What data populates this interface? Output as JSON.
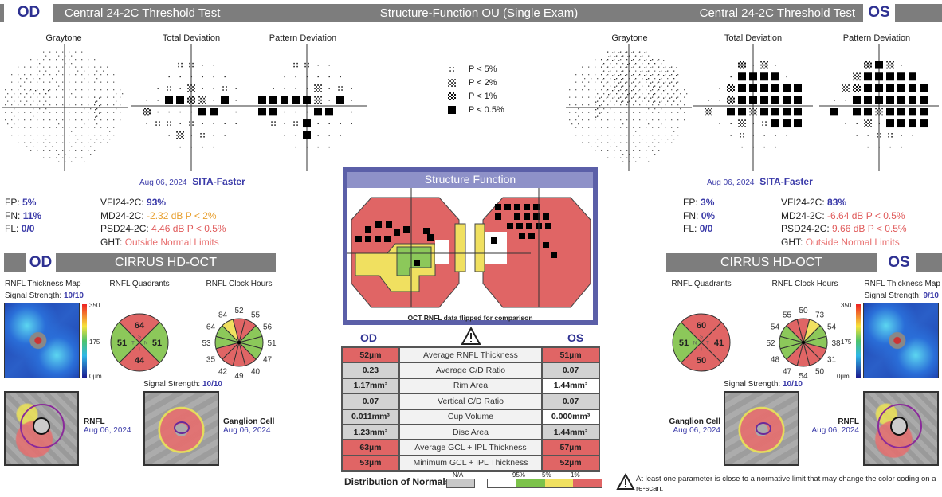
{
  "header": {
    "od": "OD",
    "os": "OS",
    "test_left": "Central 24-2C Threshold Test",
    "title": "Structure-Function OU (Single Exam)",
    "test_right": "Central 24-2C Threshold Test"
  },
  "vf_titles": {
    "graytone": "Graytone",
    "total": "Total Deviation",
    "pattern": "Pattern Deviation"
  },
  "legend": [
    {
      "sym": ":",
      "label": "P < 5%"
    },
    {
      "sym": "x",
      "label": "P < 2%"
    },
    {
      "sym": "#",
      "label": "P < 1%"
    },
    {
      "sym": "B",
      "label": "P < 0.5%"
    }
  ],
  "od_vf": {
    "date": "Aug 06, 2024",
    "strategy": "SITA-Faster",
    "fp_l": "FP:",
    "fp": "5%",
    "fn_l": "FN:",
    "fn": "11%",
    "fl_l": "FL:",
    "fl": "0/0",
    "vfi_l": "VFI24-2C:",
    "vfi": "93%",
    "md_l": "MD24-2C:",
    "md": "-2.32 dB P < 2%",
    "psd_l": "PSD24-2C:",
    "psd": "4.46 dB P < 0.5%",
    "ght_l": "GHT:",
    "ght": "Outside Normal Limits",
    "md_color": "#e8a030",
    "psd_color": "#e05a5a",
    "total_grid": [
      "   ::..  ",
      "  ...... ",
      " .:.x..:.",
      "..BB#x.B.",
      "#....BB .",
      ".::.:....",
      "  .x.:.. ",
      "   ....  "
    ],
    "pattern_grid": [
      "   ::..  ",
      "  ...... ",
      " ....x.:.",
      "BBBBBx.B.",
      "BB...BB .",
      " :.:B....",
      "  ..B... ",
      "   ....  "
    ]
  },
  "os_vf": {
    "date": "Aug 06, 2024",
    "strategy": "SITA-Faster",
    "fp_l": "FP:",
    "fp": "3%",
    "fn_l": "FN:",
    "fn": "0%",
    "fl_l": "FL:",
    "fl": "0/0",
    "vfi_l": "VFI24-2C:",
    "vfi": "83%",
    "md_l": "MD24-2C:",
    "md": "-6.64 dB P < 0.5%",
    "psd_l": "PSD24-2C:",
    "psd": "9.66 dB P < 0.5%",
    "ght_l": "GHT:",
    "ght": "Outside Normal Limits",
    "md_color": "#e05a5a",
    "psd_color": "#e05a5a",
    "total_grid": [
      "   #.x.  ",
      "  .BBBB. ",
      " .#BBBBBB",
      "..#BBBBBB",
      "x BBxBBBB",
      " ..x.:BBB",
      "  .:.... ",
      "   ....  "
    ],
    "pattern_grid": [
      "   #Bx.  ",
      "  xBBBBB ",
      " x#BBBBBB",
      "..BBBBBBB",
      "B BBxBBBB",
      " ..x.BBBB",
      "  ..::.. ",
      "   ....  "
    ]
  },
  "od_oct": {
    "eye": "OD",
    "banner": "CIRRUS HD-OCT",
    "map_label": "RNFL Thickness Map",
    "signal_label": "Signal Strength:",
    "signal": "10/10",
    "quad_label": "RNFL Quadrants",
    "clock_label": "RNFL Clock Hours",
    "scale": {
      "top": "350",
      "mid": "175",
      "bottom": "0µm"
    },
    "quadrants": {
      "S": {
        "v": "64",
        "c": "#e06565"
      },
      "N": {
        "v": "51",
        "c": "#8cc85a"
      },
      "I": {
        "v": "44",
        "c": "#e06565"
      },
      "T": {
        "v": "51",
        "c": "#8cc85a"
      }
    },
    "quad_letters": {
      "S": "S",
      "N": "N",
      "I": "I",
      "T": "T"
    },
    "clock": [
      {
        "v": "52",
        "c": "#e06565"
      },
      {
        "v": "55",
        "c": "#e06565"
      },
      {
        "v": "56",
        "c": "#8cc85a"
      },
      {
        "v": "51",
        "c": "#8cc85a"
      },
      {
        "v": "47",
        "c": "#8cc85a"
      },
      {
        "v": "40",
        "c": "#e06565"
      },
      {
        "v": "49",
        "c": "#e06565"
      },
      {
        "v": "42",
        "c": "#e06565"
      },
      {
        "v": "35",
        "c": "#e06565"
      },
      {
        "v": "53",
        "c": "#8cc85a"
      },
      {
        "v": "64",
        "c": "#8cc85a"
      },
      {
        "v": "84",
        "c": "#f0e060"
      }
    ],
    "rnfl_label": "RNFL",
    "rnfl_date": "Aug 06, 2024",
    "gcl_signal_label": "Signal Strength:",
    "gcl_signal": "10/10",
    "gcl_label": "Ganglion Cell",
    "gcl_date": "Aug 06, 2024"
  },
  "os_oct": {
    "eye": "OS",
    "banner": "CIRRUS HD-OCT",
    "map_label": "RNFL Thickness Map",
    "signal_label": "Signal Strength:",
    "signal": "9/10",
    "quad_label": "RNFL Quadrants",
    "clock_label": "RNFL Clock Hours",
    "scale": {
      "top": "350",
      "mid": "175",
      "bottom": "0µm"
    },
    "quadrants": {
      "S": {
        "v": "60",
        "c": "#e06565"
      },
      "N": {
        "v": "51",
        "c": "#8cc85a"
      },
      "I": {
        "v": "50",
        "c": "#e06565"
      },
      "T": {
        "v": "41",
        "c": "#e06565"
      }
    },
    "quad_letters": {
      "S": "S",
      "N": "N",
      "I": "I",
      "T": "T"
    },
    "clock": [
      {
        "v": "50",
        "c": "#e06565"
      },
      {
        "v": "73",
        "c": "#f0e060"
      },
      {
        "v": "54",
        "c": "#8cc85a"
      },
      {
        "v": "38",
        "c": "#8cc85a"
      },
      {
        "v": "31",
        "c": "#e06565"
      },
      {
        "v": "50",
        "c": "#e06565"
      },
      {
        "v": "54",
        "c": "#e06565"
      },
      {
        "v": "47",
        "c": "#e06565"
      },
      {
        "v": "48",
        "c": "#8cc85a"
      },
      {
        "v": "52",
        "c": "#8cc85a"
      },
      {
        "v": "54",
        "c": "#8cc85a"
      },
      {
        "v": "55",
        "c": "#e06565"
      }
    ],
    "rnfl_label": "RNFL",
    "rnfl_date": "Aug 06, 2024",
    "gcl_signal_label": "Signal Strength:",
    "gcl_signal": "10/10",
    "gcl_label": "Ganglion Cell",
    "gcl_date": "Aug 06, 2024"
  },
  "sf": {
    "title": "Structure Function",
    "caption": "OCT RNFL data flipped for comparison",
    "od": "OD",
    "os": "OS",
    "rows": [
      {
        "od": "52µm",
        "label": "Average RNFL Thickness",
        "os": "51µm",
        "odc": "red",
        "osc": "red"
      },
      {
        "od": "0.23",
        "label": "Average C/D Ratio",
        "os": "0.07",
        "odc": "gry",
        "osc": "gry"
      },
      {
        "od": "1.17mm²",
        "label": "Rim Area",
        "os": "1.44mm²",
        "odc": "gry",
        "osc": "wht"
      },
      {
        "od": "0.07",
        "label": "Vertical C/D Ratio",
        "os": "0.07",
        "odc": "gry",
        "osc": "gry"
      },
      {
        "od": "0.011mm³",
        "label": "Cup Volume",
        "os": "0.000mm³",
        "odc": "gry",
        "osc": "wht"
      },
      {
        "od": "1.23mm²",
        "label": "Disc Area",
        "os": "1.44mm²",
        "odc": "gry",
        "osc": "gry"
      },
      {
        "od": "63µm",
        "label": "Average GCL + IPL Thickness",
        "os": "57µm",
        "odc": "red",
        "osc": "red"
      },
      {
        "od": "53µm",
        "label": "Minimum GCL + IPL Thickness",
        "os": "52µm",
        "odc": "red",
        "osc": "red"
      }
    ],
    "dist_label": "Distribution of Normals",
    "na": "N/A",
    "p95": "95%",
    "p5": "5%",
    "p1": "1%"
  },
  "note": "At least one parameter is close to a normative limit that may change the color coding on a re-scan."
}
